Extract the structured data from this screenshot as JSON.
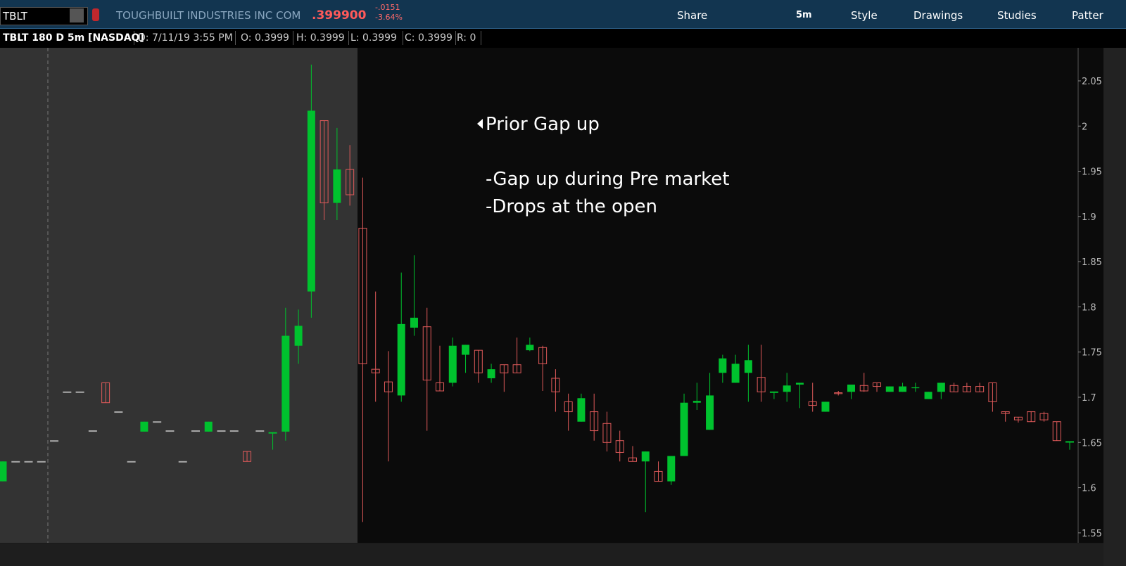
{
  "toolbar": {
    "symbol": "TBLT",
    "company": "TOUGHBUILT INDUSTRIES INC COM",
    "last": ".399900",
    "change": "-.0151",
    "change_pct": "-3.64%",
    "buttons": [
      "Share",
      "5m",
      "Style",
      "Drawings",
      "Studies",
      "Patter"
    ]
  },
  "info_bar": [
    "TBLT 180 D 5m [NASDAQ]",
    "D: 7/11/19 3:55 PM",
    "O: 0.3999",
    "H: 0.3999",
    "L: 0.3999",
    "C: 0.3999",
    "R: 0"
  ],
  "chart_data": {
    "type": "candlestick",
    "annotations": [
      "Prior Gap up",
      "-Gap up during Pre market",
      "-Drops at the open"
    ],
    "up_color": "#00c22e",
    "down_color": "#e05a5a",
    "ylim": [
      1.539,
      2.085
    ],
    "yticks": [
      1.55,
      1.6,
      1.65,
      1.7,
      1.75,
      1.8,
      1.85,
      1.9,
      1.95,
      2,
      2.05
    ],
    "open": [
      1.607,
      1.629,
      1.629,
      1.629,
      1.652,
      1.706,
      1.706,
      1.663,
      1.716,
      1.684,
      1.629,
      1.662,
      1.673,
      1.663,
      1.629,
      1.663,
      1.662,
      1.663,
      1.663,
      1.64,
      1.663,
      1.661,
      1.662,
      1.757,
      1.817,
      2.006,
      1.915,
      1.952,
      1.887,
      1.731,
      1.717,
      1.702,
      1.777,
      1.778,
      1.716,
      1.716,
      1.747,
      1.752,
      1.721,
      1.736,
      1.736,
      1.752,
      1.755,
      1.721,
      1.695,
      1.673,
      1.684,
      1.671,
      1.652,
      1.633,
      1.629,
      1.618,
      1.607,
      1.635,
      1.694,
      1.664,
      1.727,
      1.716,
      1.727,
      1.722,
      1.706,
      1.706,
      1.714,
      1.695,
      1.684,
      1.705,
      1.706,
      1.713,
      1.716,
      1.706,
      1.706,
      1.71,
      1.698,
      1.706,
      1.713,
      1.712,
      1.712,
      1.716,
      1.684,
      1.678,
      1.684,
      1.682,
      1.673,
      1.651
    ],
    "high": [
      1.629,
      1.629,
      1.629,
      1.629,
      1.652,
      1.706,
      1.706,
      1.663,
      1.716,
      1.684,
      1.629,
      1.673,
      1.673,
      1.663,
      1.629,
      1.663,
      1.673,
      1.663,
      1.663,
      1.64,
      1.663,
      1.661,
      1.799,
      1.797,
      2.068,
      2.006,
      1.998,
      1.979,
      1.943,
      1.817,
      1.751,
      1.838,
      1.857,
      1.799,
      1.757,
      1.766,
      1.758,
      1.752,
      1.737,
      1.736,
      1.766,
      1.766,
      1.757,
      1.731,
      1.704,
      1.704,
      1.704,
      1.684,
      1.663,
      1.646,
      1.64,
      1.629,
      1.635,
      1.704,
      1.716,
      1.727,
      1.747,
      1.747,
      1.758,
      1.758,
      1.706,
      1.727,
      1.716,
      1.716,
      1.695,
      1.707,
      1.714,
      1.727,
      1.716,
      1.712,
      1.716,
      1.716,
      1.706,
      1.716,
      1.716,
      1.716,
      1.716,
      1.716,
      1.684,
      1.678,
      1.684,
      1.684,
      1.673,
      1.651
    ],
    "low": [
      1.607,
      1.629,
      1.629,
      1.629,
      1.652,
      1.706,
      1.706,
      1.663,
      1.694,
      1.684,
      1.629,
      1.662,
      1.673,
      1.663,
      1.629,
      1.663,
      1.662,
      1.663,
      1.663,
      1.629,
      1.663,
      1.642,
      1.652,
      1.737,
      1.788,
      1.896,
      1.896,
      1.912,
      1.562,
      1.695,
      1.629,
      1.695,
      1.768,
      1.663,
      1.707,
      1.712,
      1.727,
      1.716,
      1.716,
      1.706,
      1.727,
      1.751,
      1.707,
      1.684,
      1.663,
      1.673,
      1.652,
      1.64,
      1.629,
      1.629,
      1.573,
      1.607,
      1.603,
      1.635,
      1.686,
      1.664,
      1.716,
      1.716,
      1.695,
      1.695,
      1.698,
      1.695,
      1.688,
      1.684,
      1.684,
      1.702,
      1.698,
      1.706,
      1.706,
      1.706,
      1.706,
      1.706,
      1.698,
      1.698,
      1.706,
      1.706,
      1.706,
      1.684,
      1.673,
      1.672,
      1.673,
      1.673,
      1.652,
      1.642
    ],
    "close": [
      1.629,
      1.629,
      1.629,
      1.629,
      1.652,
      1.706,
      1.706,
      1.663,
      1.694,
      1.684,
      1.629,
      1.673,
      1.673,
      1.663,
      1.629,
      1.663,
      1.673,
      1.663,
      1.663,
      1.629,
      1.663,
      1.661,
      1.768,
      1.779,
      2.017,
      1.915,
      1.952,
      1.924,
      1.737,
      1.727,
      1.706,
      1.781,
      1.788,
      1.719,
      1.707,
      1.757,
      1.758,
      1.727,
      1.731,
      1.727,
      1.727,
      1.758,
      1.737,
      1.706,
      1.684,
      1.699,
      1.663,
      1.65,
      1.639,
      1.629,
      1.64,
      1.607,
      1.635,
      1.694,
      1.696,
      1.702,
      1.743,
      1.737,
      1.741,
      1.706,
      1.706,
      1.713,
      1.716,
      1.691,
      1.695,
      1.704,
      1.714,
      1.707,
      1.712,
      1.712,
      1.712,
      1.711,
      1.706,
      1.716,
      1.706,
      1.706,
      1.706,
      1.695,
      1.682,
      1.675,
      1.673,
      1.675,
      1.652,
      1.651
    ]
  }
}
